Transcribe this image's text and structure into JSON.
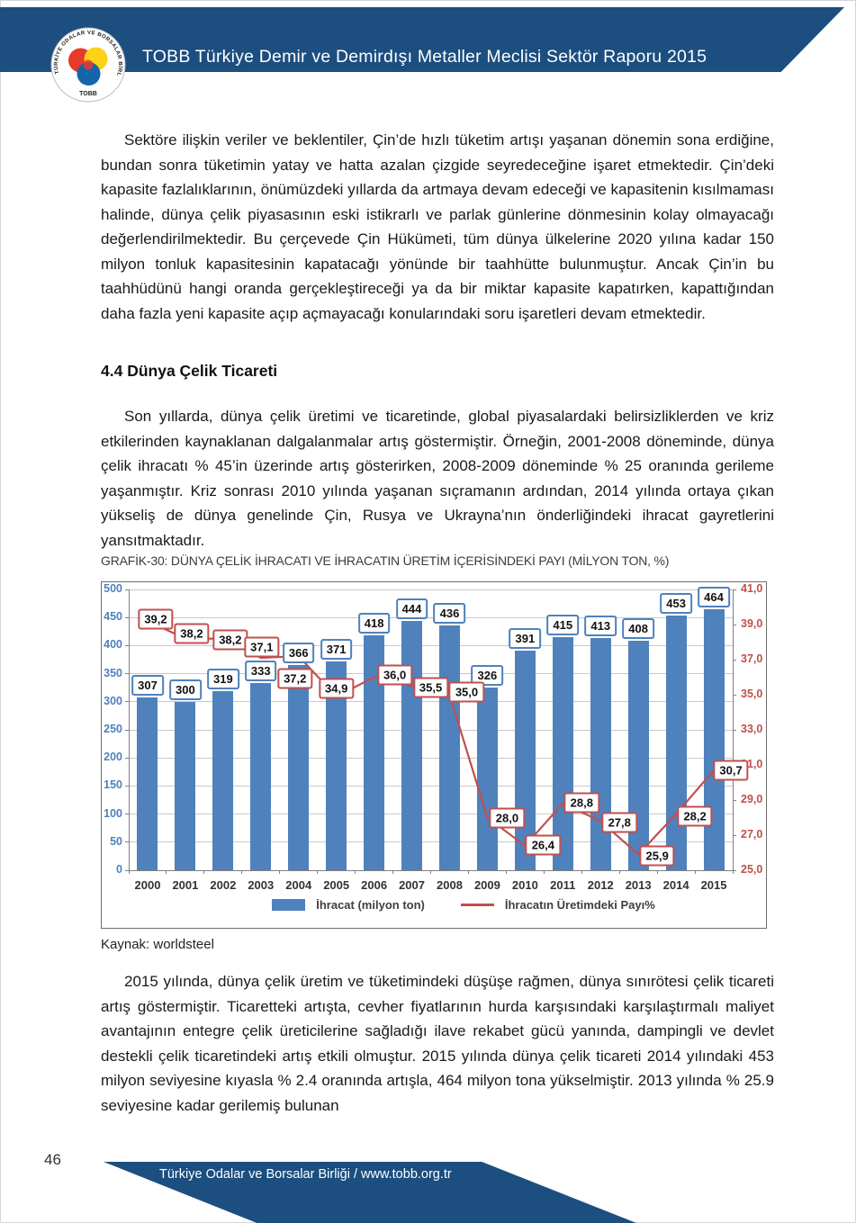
{
  "header": {
    "banner_title": "TOBB Türkiye Demir ve Demirdışı Metaller Meclisi Sektör Raporu 2015",
    "logo": {
      "ring_text": "TÜRKİYE ODALAR VE BORSALAR BİRLİĞİ",
      "bottom_text": "TOBB"
    }
  },
  "body": {
    "paragraph1": "Sektöre ilişkin veriler ve beklentiler, Çin’de hızlı tüketim artışı yaşanan dönemin sona erdiğine, bundan sonra tüketimin yatay ve hatta azalan çizgide seyredeceğine işaret etmektedir. Çin’deki kapasite fazlalıklarının, önümüzdeki yıllarda da artmaya devam edeceği ve kapasitenin kısılmaması halinde, dünya çelik piyasasının eski istikrarlı ve parlak günlerine dönmesinin kolay olmayacağı değerlendirilmektedir. Bu çerçevede Çin Hükümeti, tüm dünya ülkelerine 2020 yılına kadar 150 milyon tonluk kapasitesinin kapatacağı yönünde bir taahhütte bulunmuştur. Ancak Çin’in bu taahhüdünü hangi oranda gerçekleştireceği ya da bir miktar kapasite kapatırken, kapattığından daha fazla yeni kapasite açıp açmayacağı konularındaki soru işaretleri devam etmektedir.",
    "section_heading": "4.4 Dünya Çelik Ticareti",
    "paragraph2": "Son yıllarda, dünya çelik üretimi ve ticaretinde, global piyasalardaki belirsizliklerden ve kriz etkilerinden kaynaklanan dalgalanmalar artış göstermiştir. Örneğin, 2001-2008 döneminde, dünya çelik ihracatı % 45’in üzerinde artış gösterirken, 2008-2009 döneminde % 25 oranında gerileme yaşanmıştır. Kriz sonrası 2010 yılında yaşanan sıçramanın ardından, 2014 yılında ortaya çıkan yükseliş de dünya genelinde Çin, Rusya ve Ukrayna’nın önderliğindeki ihracat gayretlerini yansıtmaktadır.",
    "chart_caption": "GRAFİK-30: DÜNYA ÇELİK İHRACATI VE İHRACATIN ÜRETİM İÇERİSİNDEKİ PAYI (MİLYON TON, %)",
    "source_note": "Kaynak: worldsteel",
    "paragraph3": "2015 yılında, dünya çelik üretim ve tüketimindeki düşüşe rağmen, dünya sınırötesi çelik ticareti artış göstermiştir. Ticaretteki artışta, cevher fiyatlarının hurda karşısındaki karşılaştırmalı maliyet avantajının entegre çelik üreticilerine sağladığı ilave rekabet gücü yanında, dampingli ve devlet destekli çelik ticaretindeki artış etkili olmuştur. 2015 yılında dünya çelik ticareti 2014 yılındaki 453 milyon seviyesine kıyasla % 2.4 oranında artışla, 464 milyon tona yükselmiştir. 2013 yılında % 25.9 seviyesine kadar gerilemiş bulunan"
  },
  "chart_data": {
    "type": "bar",
    "title": "GRAFİK-30: DÜNYA ÇELİK İHRACATI VE İHRACATIN ÜRETİM İÇERİSİNDEKİ PAYI (MİLYON TON, %)",
    "categories": [
      "2000",
      "2001",
      "2002",
      "2003",
      "2004",
      "2005",
      "2006",
      "2007",
      "2008",
      "2009",
      "2010",
      "2011",
      "2012",
      "2013",
      "2014",
      "2015"
    ],
    "series": [
      {
        "name": "İhracat (milyon ton)",
        "type": "bar",
        "axis": "left",
        "color": "#4f81bd",
        "values": [
          307,
          300,
          319,
          333,
          366,
          371,
          418,
          444,
          436,
          326,
          391,
          415,
          413,
          408,
          453,
          464
        ]
      },
      {
        "name": "İhracatın Üretimdeki Payı%",
        "type": "line",
        "axis": "right",
        "color": "#c0504d",
        "values": [
          39.2,
          38.2,
          38.2,
          37.1,
          37.2,
          34.9,
          36.0,
          35.5,
          35.0,
          28.0,
          26.4,
          28.8,
          27.8,
          25.9,
          28.2,
          30.7
        ],
        "display_labels": [
          "39,2",
          "38,2",
          "38,2",
          "37,1",
          "37,2",
          "34,9",
          "36,0",
          "35,5",
          "35,0",
          "28,0",
          "26,4",
          "28,8",
          "27,8",
          "25,9",
          "28,2",
          "30,7"
        ]
      }
    ],
    "left_axis": {
      "min": 0,
      "max": 500,
      "step": 50,
      "color": "#4f81bd",
      "ticks": [
        "500",
        "450",
        "400",
        "350",
        "300",
        "250",
        "200",
        "150",
        "100",
        "50",
        "0"
      ]
    },
    "right_axis": {
      "min": 25,
      "max": 41,
      "step": 2,
      "color": "#c0504d",
      "ticks": [
        "41,0",
        "39,0",
        "37,0",
        "35,0",
        "33,0",
        "31,0",
        "29,0",
        "27,0",
        "25,0"
      ]
    },
    "grid": true,
    "legend_position": "bottom"
  },
  "footer": {
    "page_number": "46",
    "band_text": "Türkiye Odalar ve Borsalar Birliği / www.tobb.org.tr"
  },
  "colors": {
    "banner_blue": "#1c4e7f",
    "bar_blue": "#4f81bd",
    "line_red": "#c0504d",
    "gridline": "#c9c9c9",
    "axis_line": "#808080"
  }
}
